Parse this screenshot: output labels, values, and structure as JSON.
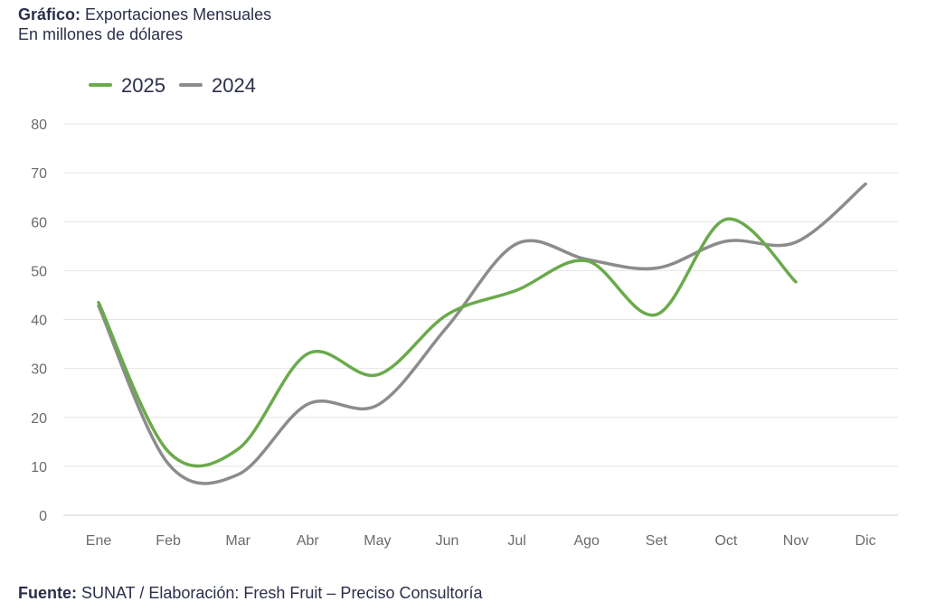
{
  "header": {
    "title_bold": "Gráfico:",
    "title_rest": " Exportaciones Mensuales",
    "subtitle": "En millones de dólares"
  },
  "footer": {
    "bold": "Fuente:",
    "rest": " SUNAT / Elaboración: Fresh Fruit – Preciso Consultoría"
  },
  "chart_data": {
    "type": "line",
    "title": "Exportaciones Mensuales",
    "subtitle": "En millones de dólares",
    "xlabel": "",
    "ylabel": "",
    "categories": [
      "Ene",
      "Feb",
      "Mar",
      "Abr",
      "May",
      "Jun",
      "Jul",
      "Ago",
      "Set",
      "Oct",
      "Nov",
      "Dic"
    ],
    "ylim": [
      0,
      80
    ],
    "yticks": [
      0,
      10,
      20,
      30,
      40,
      50,
      60,
      70,
      80
    ],
    "grid": true,
    "legend": "top-left",
    "series": [
      {
        "name": "2025",
        "color": "#6aaa4b",
        "values": [
          43.5,
          13,
          13.5,
          33,
          28.7,
          41,
          46,
          52,
          41,
          60.5,
          47.7,
          null
        ]
      },
      {
        "name": "2024",
        "color": "#8c8c8c",
        "values": [
          42.8,
          10.5,
          8.3,
          22.7,
          22.5,
          38.5,
          55.5,
          52.3,
          50.5,
          56,
          55.8,
          67.7
        ]
      }
    ]
  }
}
